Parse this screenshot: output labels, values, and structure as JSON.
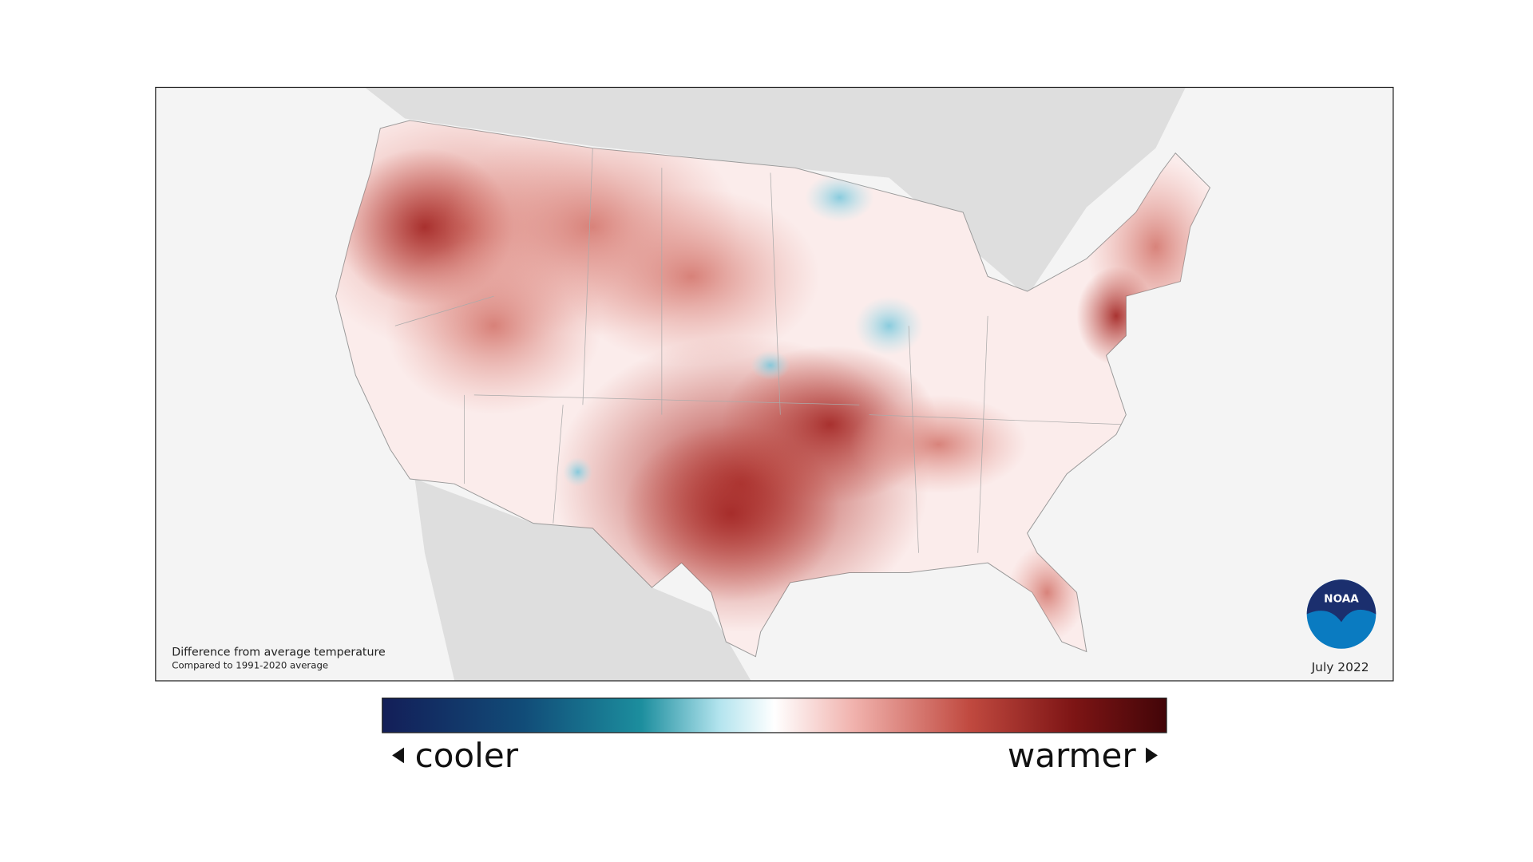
{
  "map": {
    "caption": "Difference from average temperature",
    "subcaption": "Compared to 1991-2020 average",
    "date": "July 2022",
    "logo": "NOAA"
  },
  "legend": {
    "low_label": "cooler",
    "high_label": "warmer"
  }
}
